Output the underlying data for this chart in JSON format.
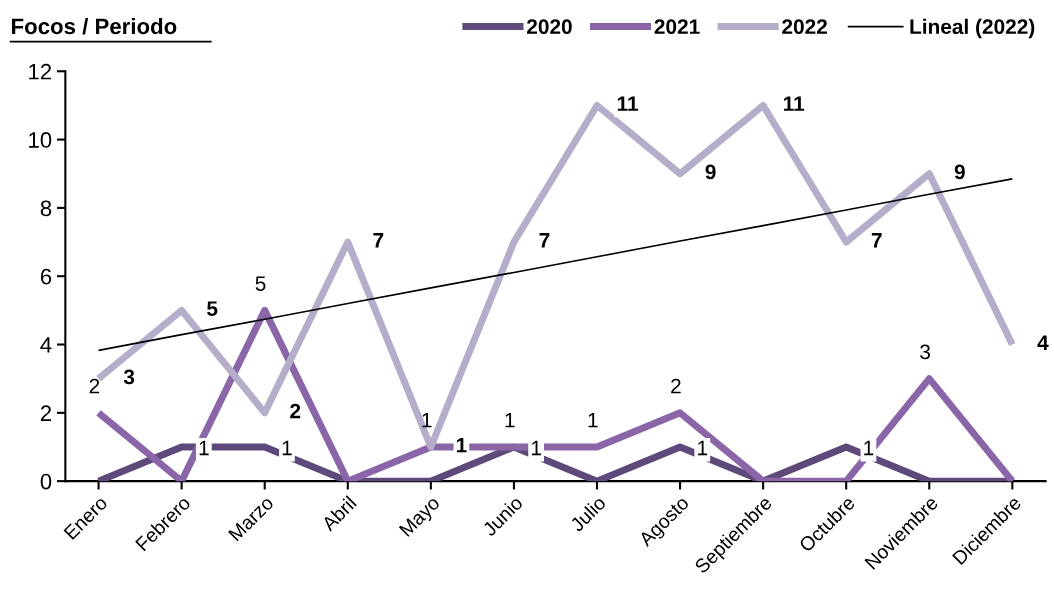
{
  "chart_data": {
    "type": "line",
    "title": "Focos / Periodo",
    "categories": [
      "Enero",
      "Febrero",
      "Marzo",
      "Abril",
      "Mayo",
      "Junio",
      "Julio",
      "Agosto",
      "Septiembre",
      "Octubre",
      "Noviembre",
      "Diciembre"
    ],
    "series": [
      {
        "name": "2020",
        "color": "#5e4a7a",
        "values": [
          0,
          1,
          1,
          0,
          0,
          1,
          0,
          1,
          0,
          1,
          0,
          0
        ],
        "value_labels": [
          null,
          "1",
          "1",
          null,
          null,
          "1",
          null,
          "1",
          null,
          "1",
          null,
          null
        ]
      },
      {
        "name": "2021",
        "color": "#8a66a8",
        "values": [
          2,
          0,
          5,
          0,
          1,
          1,
          1,
          2,
          0,
          0,
          3,
          0
        ],
        "value_labels": [
          "2",
          null,
          "5",
          null,
          "1",
          "1",
          "1",
          "2",
          null,
          null,
          "3",
          null
        ]
      },
      {
        "name": "2022",
        "color": "#b5adc9",
        "values": [
          3,
          5,
          2,
          7,
          1,
          7,
          11,
          9,
          11,
          7,
          9,
          4
        ],
        "value_labels": [
          "3",
          "5",
          "2",
          "7",
          "1",
          "7",
          "11",
          "9",
          "11",
          "7",
          "9",
          "4"
        ]
      },
      {
        "name": "Lineal (2022)",
        "color": "#000000",
        "values": [
          3.83,
          4.29,
          4.74,
          5.2,
          5.66,
          6.11,
          6.57,
          7.03,
          7.48,
          7.94,
          8.4,
          8.85
        ]
      }
    ],
    "ylim": [
      0,
      12
    ],
    "yticks": [
      0,
      2,
      4,
      6,
      8,
      10,
      12
    ],
    "grid": false,
    "legend": "top",
    "marker": "none",
    "line_style": "solid"
  }
}
